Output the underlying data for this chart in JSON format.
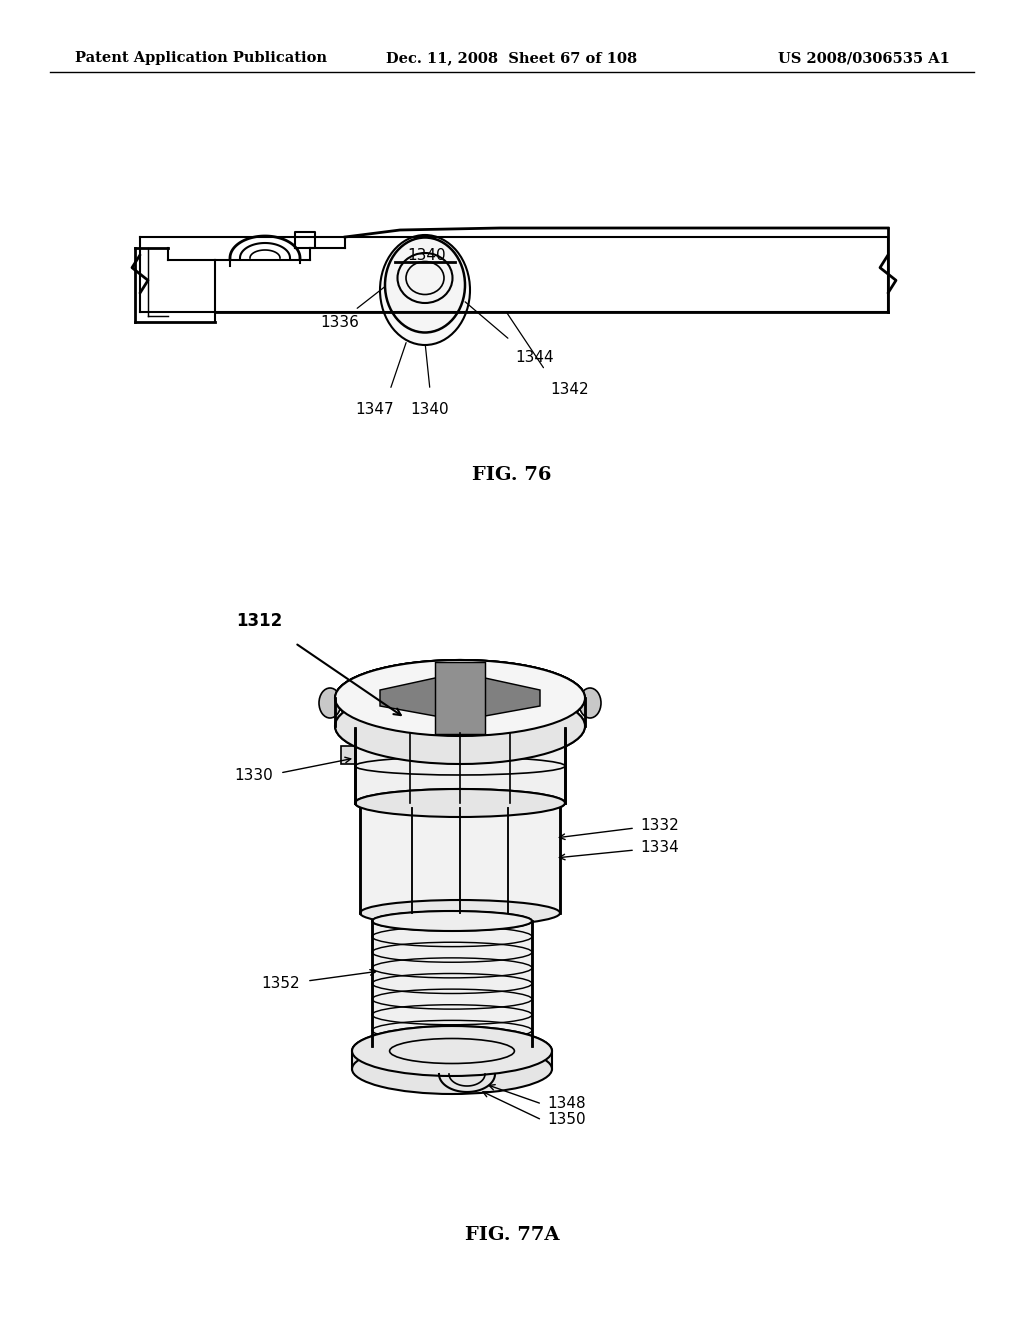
{
  "background_color": "#ffffff",
  "header_left": "Patent Application Publication",
  "header_mid": "Dec. 11, 2008  Sheet 67 of 108",
  "header_right": "US 2008/0306535 A1",
  "fig76_label": "FIG. 76",
  "fig77a_label": "FIG. 77A",
  "line_color": "#000000",
  "text_color": "#000000",
  "header_fontsize": 10.5,
  "label_fontsize": 11,
  "fig_label_fontsize": 13
}
